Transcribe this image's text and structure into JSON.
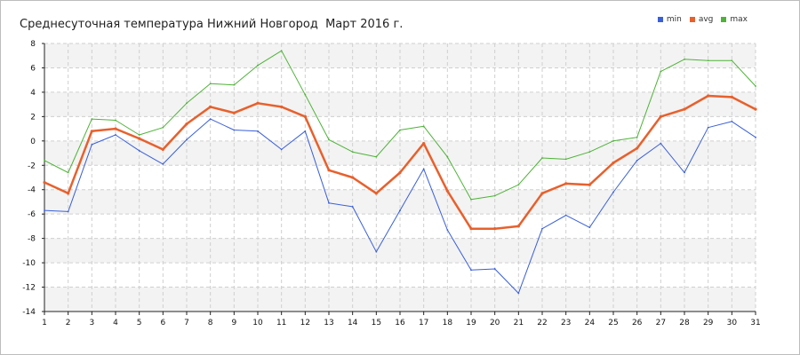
{
  "chart_data": {
    "type": "line",
    "title": "Среднесуточная температура Нижний Новгород  Март 2016 г.",
    "xlabel": "",
    "ylabel": "",
    "x": [
      1,
      2,
      3,
      4,
      5,
      6,
      7,
      8,
      9,
      10,
      11,
      12,
      13,
      14,
      15,
      16,
      17,
      18,
      19,
      20,
      21,
      22,
      23,
      24,
      25,
      26,
      27,
      28,
      29,
      30,
      31
    ],
    "ylim": [
      -14,
      8
    ],
    "yticks": [
      8,
      6,
      4,
      2,
      0,
      -2,
      -4,
      -6,
      -8,
      -10,
      -12,
      -14
    ],
    "grid": true,
    "legend_position": "top-right",
    "series": [
      {
        "name": "min",
        "color": "#3a5fd8",
        "width": 1,
        "values": [
          -5.7,
          -5.8,
          -0.3,
          0.5,
          -0.8,
          -1.9,
          0.1,
          1.8,
          0.9,
          0.8,
          -0.7,
          0.8,
          -5.1,
          -5.4,
          -9.1,
          -5.7,
          -2.3,
          -7.3,
          -10.6,
          -10.5,
          -12.5,
          -7.2,
          -6.1,
          -7.1,
          -4.2,
          -1.6,
          -0.2,
          -2.6,
          1.1,
          1.6,
          0.3
        ]
      },
      {
        "name": "avg",
        "color": "#e8602c",
        "width": 2.5,
        "values": [
          -3.4,
          -4.3,
          0.8,
          1.0,
          0.2,
          -0.7,
          1.4,
          2.8,
          2.3,
          3.1,
          2.8,
          2.0,
          -2.4,
          -3.0,
          -4.3,
          -2.6,
          -0.2,
          -4.1,
          -7.2,
          -7.2,
          -7.0,
          -4.3,
          -3.5,
          -3.6,
          -1.8,
          -0.6,
          2.0,
          2.6,
          3.7,
          3.6,
          2.6
        ]
      },
      {
        "name": "max",
        "color": "#4db336",
        "width": 1,
        "values": [
          -1.6,
          -2.6,
          1.8,
          1.7,
          0.5,
          1.1,
          3.1,
          4.7,
          4.6,
          6.2,
          7.4,
          3.8,
          0.1,
          -0.9,
          -1.3,
          0.9,
          1.2,
          -1.3,
          -4.8,
          -4.5,
          -3.6,
          -1.4,
          -1.5,
          -0.9,
          0.0,
          0.3,
          5.7,
          6.7,
          6.6,
          6.6,
          4.5
        ]
      }
    ]
  }
}
